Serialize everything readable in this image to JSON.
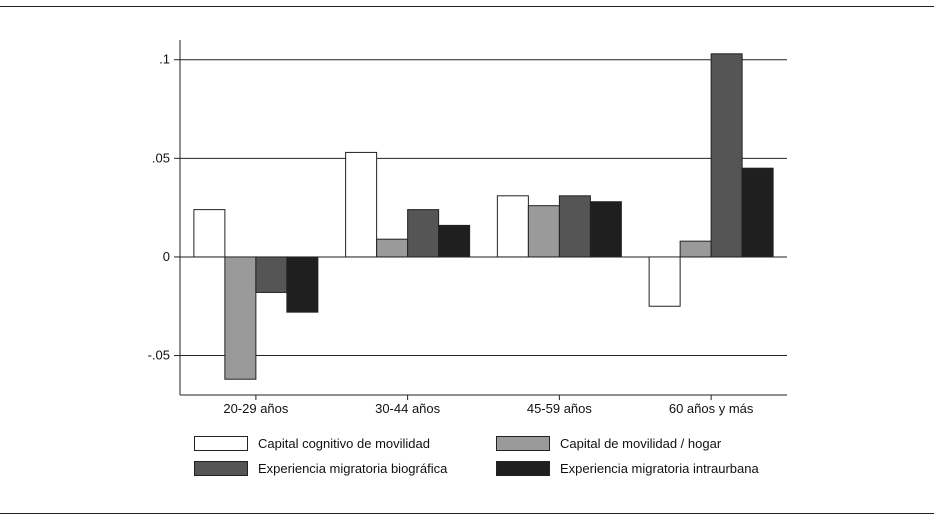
{
  "chart_data": {
    "type": "bar",
    "title": "",
    "xlabel": "",
    "ylabel": "",
    "ylim": [
      -0.07,
      0.11
    ],
    "yticks": [
      -0.05,
      0,
      0.05,
      0.1
    ],
    "ytick_labels": [
      "-.05",
      "0",
      ".05",
      ".1"
    ],
    "grid": true,
    "categories": [
      "20-29 años",
      "30-44 años",
      "45-59 años",
      "60 años y más"
    ],
    "series": [
      {
        "name": "Capital cognitivo de movilidad",
        "color": "#ffffff",
        "values": [
          0.024,
          0.053,
          0.031,
          -0.025
        ]
      },
      {
        "name": "Capital de movilidad / hogar",
        "color": "#9a9a9a",
        "values": [
          -0.062,
          0.009,
          0.026,
          0.008
        ]
      },
      {
        "name": "Experiencia migratoria biográfica",
        "color": "#555555",
        "values": [
          -0.018,
          0.024,
          0.031,
          0.103
        ]
      },
      {
        "name": "Experiencia migratoria intraurbana",
        "color": "#1f1f1f",
        "values": [
          -0.028,
          0.016,
          0.028,
          0.045
        ]
      }
    ],
    "legend_position": "bottom"
  }
}
